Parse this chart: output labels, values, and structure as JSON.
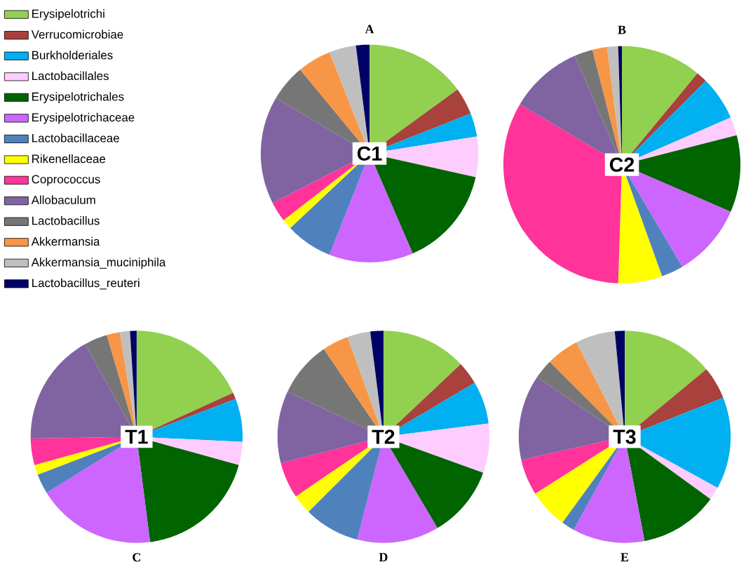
{
  "chart_data": [
    {
      "type": "pie",
      "title": "A",
      "annotations": [
        "C1"
      ],
      "legend": "left",
      "categories": [
        "Erysipelotrichi",
        "Verrucomicrobiae",
        "Burkholderiales",
        "Lactobacillales",
        "Erysipelotrichales",
        "Erysipelotrichaceae",
        "Lactobacillaceae",
        "Rikenellaceae",
        "Coprococcus",
        "Allobaculum",
        "Lactobacillus",
        "Akkermansia",
        "Akkermansia_muciniphila",
        "Lactobacillus_reuteri"
      ],
      "values": [
        15,
        4,
        3.5,
        6,
        15,
        12.5,
        7,
        1.5,
        3,
        16,
        5.5,
        5,
        4,
        2
      ],
      "colors": [
        "#92d050",
        "#a9413c",
        "#00b0f0",
        "#ffccff",
        "#006400",
        "#cc66ff",
        "#4f81bd",
        "#ffff00",
        "#ff3399",
        "#8064a2",
        "#767676",
        "#f79646",
        "#bfbfbf",
        "#000066"
      ]
    },
    {
      "type": "pie",
      "title": "B",
      "annotations": [
        "C2"
      ],
      "categories": [
        null,
        null,
        null,
        null,
        null,
        null,
        null,
        null,
        null,
        null,
        null,
        null,
        null,
        null
      ],
      "values": [
        11,
        1.5,
        6,
        2.5,
        10.5,
        10,
        3,
        6,
        33,
        10,
        2.5,
        2,
        1.5,
        0.5
      ],
      "colors": [
        "#92d050",
        "#a9413c",
        "#00b0f0",
        "#ffccff",
        "#006400",
        "#cc66ff",
        "#4f81bd",
        "#ffff00",
        "#ff3399",
        "#8064a2",
        "#767676",
        "#f79646",
        "#bfbfbf",
        "#000066"
      ]
    },
    {
      "type": "pie",
      "title": "C",
      "annotations": [
        "T1"
      ],
      "categories": [
        null,
        null,
        null,
        null,
        null,
        null,
        null,
        null,
        null,
        null,
        null,
        null,
        null,
        null
      ],
      "values": [
        18,
        1,
        6.5,
        3.5,
        18.5,
        18,
        3,
        1.5,
        4,
        17,
        3.5,
        2,
        1.5,
        1
      ],
      "colors": [
        "#92d050",
        "#a9413c",
        "#00b0f0",
        "#ffccff",
        "#006400",
        "#cc66ff",
        "#4f81bd",
        "#ffff00",
        "#ff3399",
        "#8064a2",
        "#767676",
        "#f79646",
        "#bfbfbf",
        "#000066"
      ]
    },
    {
      "type": "pie",
      "title": "D",
      "annotations": [
        "T2"
      ],
      "categories": [
        null,
        null,
        null,
        null,
        null,
        null,
        null,
        null,
        null,
        null,
        null,
        null,
        null,
        null
      ],
      "values": [
        13,
        3.5,
        6.5,
        7.5,
        11,
        12.5,
        8.5,
        3,
        5.5,
        11,
        8.5,
        4,
        3.5,
        2
      ],
      "colors": [
        "#92d050",
        "#a9413c",
        "#00b0f0",
        "#ffccff",
        "#006400",
        "#cc66ff",
        "#4f81bd",
        "#ffff00",
        "#ff3399",
        "#8064a2",
        "#767676",
        "#f79646",
        "#bfbfbf",
        "#000066"
      ]
    },
    {
      "type": "pie",
      "title": "E",
      "annotations": [
        "T3"
      ],
      "categories": [
        null,
        null,
        null,
        null,
        null,
        null,
        null,
        null,
        null,
        null,
        null,
        null,
        null,
        null
      ],
      "values": [
        14,
        5,
        14,
        2,
        12,
        11,
        2,
        6,
        5.5,
        13,
        3,
        5,
        6,
        1.5
      ],
      "colors": [
        "#92d050",
        "#a9413c",
        "#00b0f0",
        "#ffccff",
        "#006400",
        "#cc66ff",
        "#4f81bd",
        "#ffff00",
        "#ff3399",
        "#8064a2",
        "#767676",
        "#f79646",
        "#bfbfbf",
        "#000066"
      ]
    }
  ]
}
